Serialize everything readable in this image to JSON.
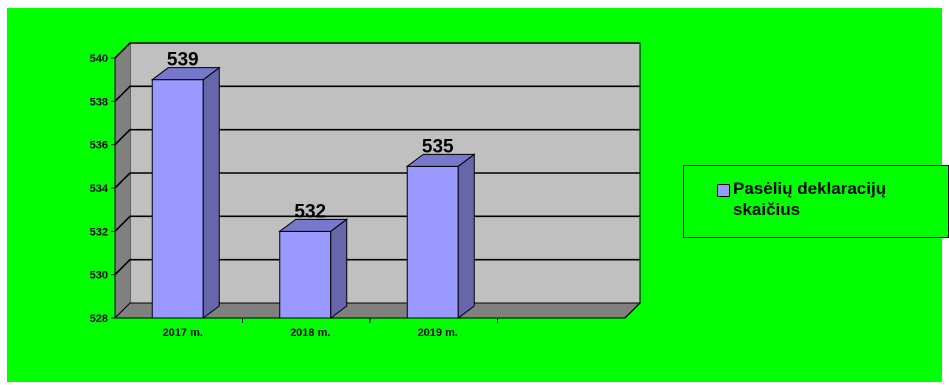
{
  "chart_data": {
    "type": "bar",
    "categories": [
      "2017 m.",
      "2018 m.",
      "2019 m."
    ],
    "series": [
      {
        "name": "Pasėlių deklaracijų skaičius",
        "values": [
          539,
          532,
          535
        ]
      }
    ],
    "data_labels": [
      "539",
      "532",
      "535"
    ],
    "y_ticks": [
      "528",
      "530",
      "532",
      "534",
      "536",
      "538",
      "540"
    ],
    "ylim": [
      528,
      540
    ],
    "y_step": 2,
    "grid": true,
    "legend_position": "right",
    "colors": {
      "background": "#00ff00",
      "plot_wall": "#c0c0c0",
      "floor": "#808080",
      "bar_front": "#9999ff",
      "bar_side": "#6666aa",
      "bar_top": "#7777cc"
    }
  }
}
